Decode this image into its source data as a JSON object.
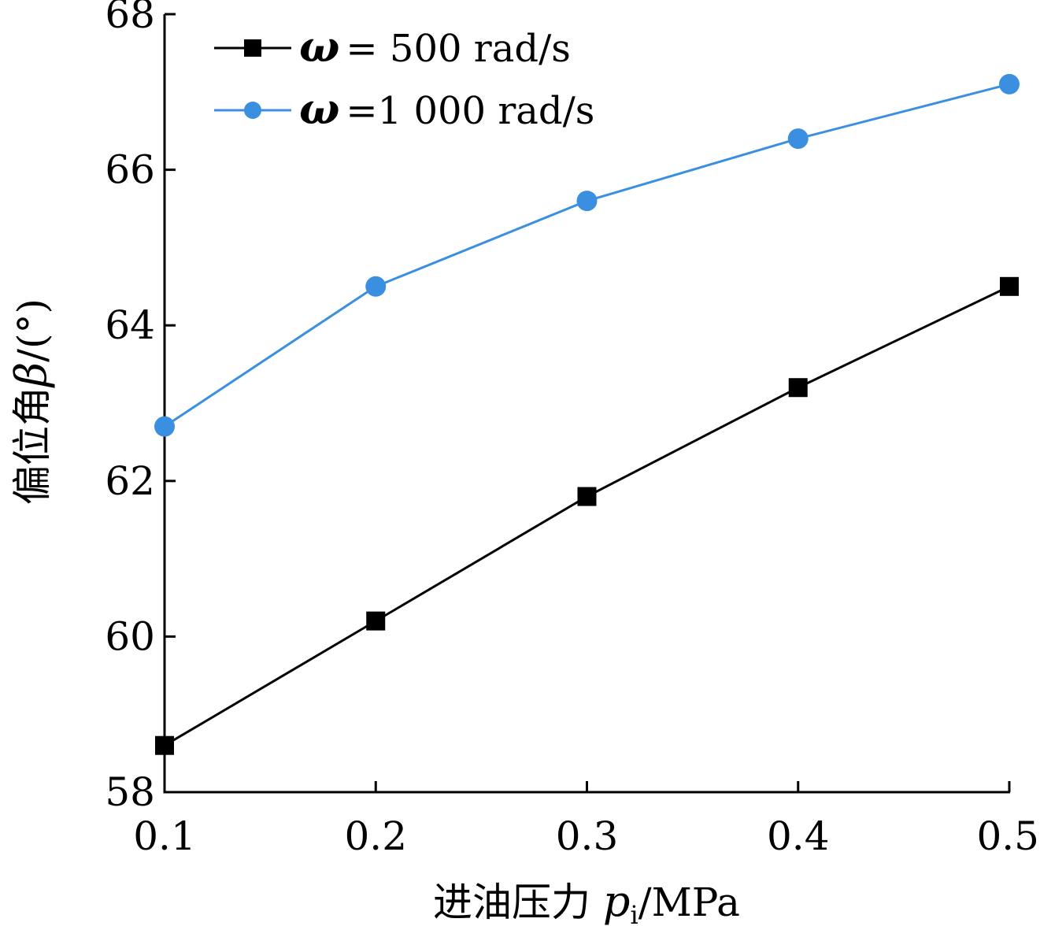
{
  "chart_data": {
    "type": "line",
    "xlabel_prefix": "进油压力 ",
    "xlabel_symbol": "p",
    "xlabel_subscript": "i",
    "xlabel_unit": "/MPa",
    "ylabel_prefix": "偏位角",
    "ylabel_symbol": "β",
    "ylabel_unit": "/(°)",
    "x": [
      0.1,
      0.2,
      0.3,
      0.4,
      0.5
    ],
    "xticks": [
      "0.1",
      "0.2",
      "0.3",
      "0.4",
      "0.5"
    ],
    "yticks": [
      "58",
      "60",
      "62",
      "64",
      "66",
      "68"
    ],
    "xlim": [
      0.1,
      0.5
    ],
    "ylim": [
      58,
      68
    ],
    "grid": false,
    "legend_position": "top-left",
    "series": [
      {
        "name": "ω = 500 rad/s",
        "legend_symbol": "ω",
        "legend_text": "= 500 rad/s",
        "color": "#000000",
        "marker": "square",
        "values": [
          58.6,
          60.2,
          61.8,
          63.2,
          64.5
        ]
      },
      {
        "name": "ω =1 000 rad/s",
        "legend_symbol": "ω",
        "legend_text": "=1 000 rad/s",
        "color": "#3a8fe0",
        "marker": "circle",
        "values": [
          62.7,
          64.5,
          65.6,
          66.4,
          67.1
        ]
      }
    ]
  }
}
